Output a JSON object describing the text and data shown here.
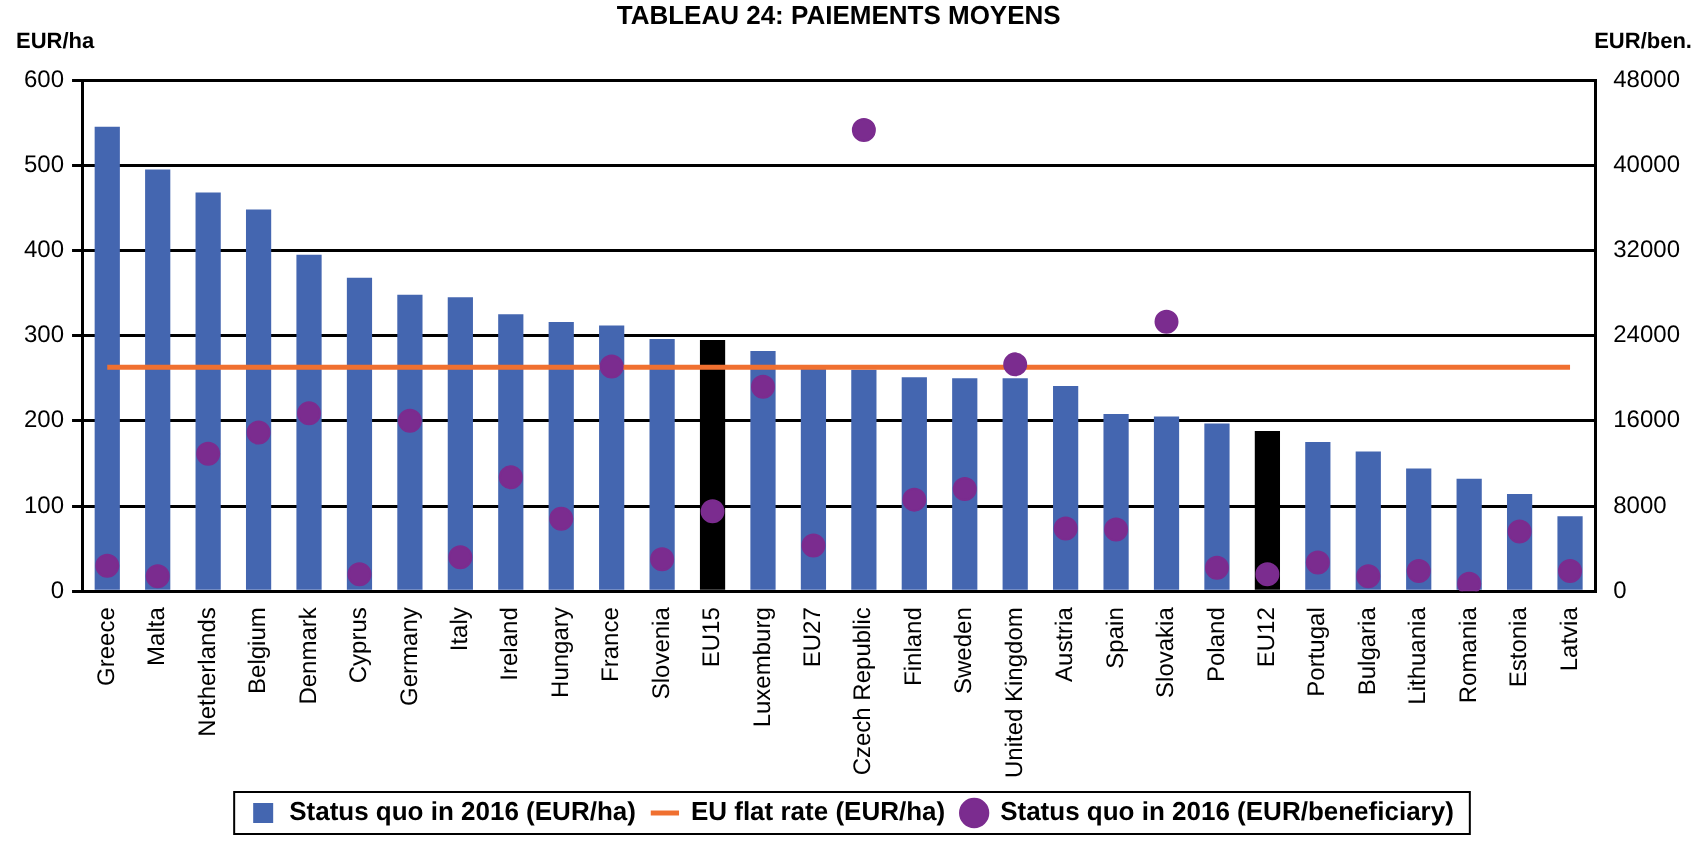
{
  "chart_data": {
    "type": "bar",
    "title": "TABLEAU 24: PAIEMENTS MOYENS",
    "ylabel": "EUR/ha",
    "y2label": "EUR/ben.",
    "categories": [
      "Greece",
      "Malta",
      "Netherlands",
      "Belgium",
      "Denmark",
      "Cyprus",
      "Germany",
      "Italy",
      "Ireland",
      "Hungary",
      "France",
      "Slovenia",
      "EU15",
      "Luxemburg",
      "EU27",
      "Czech Republic",
      "Finland",
      "Sweden",
      "United Kingdom",
      "Austria",
      "Spain",
      "Slovakia",
      "Poland",
      "EU12",
      "Portugal",
      "Bulgaria",
      "Lithuania",
      "Romania",
      "Estonia",
      "Latvia"
    ],
    "series": [
      {
        "name": "Status quo in 2016 (EUR/ha)",
        "color": "#4466b0",
        "colors": [
          "#4466b0",
          "#4466b0",
          "#4466b0",
          "#4466b0",
          "#4466b0",
          "#4466b0",
          "#4466b0",
          "#4466b0",
          "#4466b0",
          "#4466b0",
          "#4466b0",
          "#4466b0",
          "#000000",
          "#4466b0",
          "#4466b0",
          "#4466b0",
          "#4466b0",
          "#4466b0",
          "#4466b0",
          "#4466b0",
          "#4466b0",
          "#4466b0",
          "#4466b0",
          "#000000",
          "#4466b0",
          "#4466b0",
          "#4466b0",
          "#4466b0",
          "#4466b0",
          "#4466b0"
        ],
        "values": [
          545,
          495,
          468,
          448,
          395,
          368,
          348,
          345,
          325,
          316,
          312,
          296,
          295,
          282,
          262,
          260,
          251,
          250,
          250,
          241,
          208,
          205,
          197,
          188,
          175,
          164,
          144,
          132,
          114,
          88
        ]
      },
      {
        "name": "EU flat rate (EUR/ha)",
        "type": "line",
        "color": "#f07030",
        "marker": "none",
        "values": [
          263,
          263,
          263,
          263,
          263,
          263,
          263,
          263,
          263,
          263,
          263,
          263,
          263,
          263,
          263,
          263,
          263,
          263,
          263,
          263,
          263,
          263,
          263,
          263,
          263,
          263,
          263,
          263,
          263,
          263
        ]
      },
      {
        "name": "Status quo in 2016 (EUR/beneficiary)",
        "type": "scatter",
        "axis": "y2",
        "color": "#7b2c8f",
        "marker": "circle",
        "values": [
          2400,
          1400,
          12900,
          14900,
          16700,
          1600,
          16000,
          3200,
          10700,
          6800,
          21100,
          3000,
          7500,
          19200,
          4300,
          43300,
          8600,
          9600,
          21300,
          5900,
          5800,
          25300,
          2200,
          1600,
          2700,
          1400,
          1900,
          700,
          5600,
          1900
        ]
      }
    ],
    "ylim": [
      0,
      600
    ],
    "yticks": [
      0,
      100,
      200,
      300,
      400,
      500,
      600
    ],
    "y2lim": [
      0,
      48000
    ],
    "y2ticks": [
      0,
      8000,
      16000,
      24000,
      32000,
      40000,
      48000
    ],
    "grid": "y",
    "legend": "bottom"
  }
}
